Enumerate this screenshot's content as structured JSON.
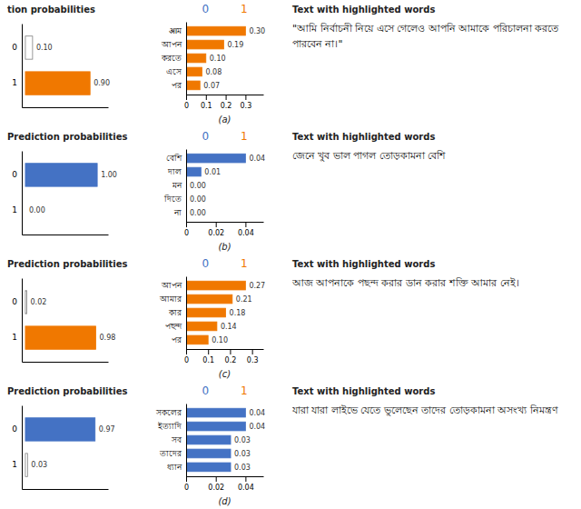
{
  "chart_data": [
    {
      "type": "bar",
      "orientation": "horizontal",
      "title": "tion probabilities",
      "categories": [
        "0",
        "1"
      ],
      "values": [
        0.1,
        0.9
      ],
      "value_labels": [
        "0.10",
        "0.90"
      ],
      "colors": [
        "white",
        "#f07800"
      ],
      "xlim": [
        -0.05,
        1.15
      ],
      "tick_labels": "y",
      "data_labels": true
    },
    {
      "type": "bar",
      "orientation": "horizontal",
      "xlabel": "(a)",
      "categories": [
        "आম",
        "আপন",
        "করতে",
        "এসে",
        "পর"
      ],
      "values": [
        0.3,
        0.19,
        0.1,
        0.08,
        0.07
      ],
      "value_labels": [
        "0.30",
        "0.19",
        "0.10",
        "0.08",
        "0.07"
      ],
      "color": "#f07800",
      "xlim": [
        0,
        0.39
      ],
      "xticks": [
        0,
        0.1,
        0.2,
        0.3
      ],
      "data_labels": true,
      "annotations": [
        {
          "text": "0",
          "color": "#4472c4"
        },
        {
          "text": "1",
          "color": "#f07800"
        }
      ]
    },
    {
      "type": "text",
      "title": "Text with highlighted words",
      "annotations": [
        {
          "text": "\"আমি নির্বাচনী নিয়ে এসে গেলেও আপনি আমাকে পরিচালনা করতে পারবেন না।\""
        }
      ]
    },
    {
      "type": "bar",
      "orientation": "horizontal",
      "title": "Prediction probabilities",
      "categories": [
        "0",
        "1"
      ],
      "values": [
        1,
        0
      ],
      "value_labels": [
        "1.00",
        "0.00"
      ],
      "colors": [
        "#4472c4",
        "white"
      ],
      "xlim": [
        -0.05,
        1.15
      ],
      "tick_labels": "y",
      "data_labels": true
    },
    {
      "type": "bar",
      "orientation": "horizontal",
      "xlabel": "(b)",
      "categories": [
        "বেশি",
        "দাল",
        "মন",
        "দিতে",
        "না"
      ],
      "values": [
        0.04,
        0.01,
        0,
        0,
        0
      ],
      "value_labels": [
        "0.04",
        "0.01",
        "0.00",
        "0.00",
        "0.00"
      ],
      "color": "#4472c4",
      "xlim": [
        0,
        0.052
      ],
      "xticks": [
        0,
        0.02,
        0.04
      ],
      "data_labels": true,
      "annotations": [
        {
          "text": "0",
          "color": "#4472c4"
        },
        {
          "text": "1",
          "color": "#f07800"
        }
      ]
    },
    {
      "type": "text",
      "title": "Text with highlighted words",
      "annotations": [
        {
          "text": "জেনে খুব ভাল পাগল তোড়কামনা বেশি"
        }
      ]
    },
    {
      "type": "bar",
      "orientation": "horizontal",
      "title": "Prediction probabilities",
      "categories": [
        "0",
        "1"
      ],
      "values": [
        0.02,
        0.98
      ],
      "value_labels": [
        "0.02",
        "0.98"
      ],
      "colors": [
        "white",
        "#f07800"
      ],
      "xlim": [
        -0.05,
        1.15
      ],
      "tick_labels": "y",
      "data_labels": true
    },
    {
      "type": "bar",
      "orientation": "horizontal",
      "xlabel": "(c)",
      "categories": [
        "আপন",
        "আমার",
        "কার",
        "পছন্দ",
        "পর"
      ],
      "values": [
        0.27,
        0.21,
        0.18,
        0.14,
        0.1
      ],
      "value_labels": [
        "0.27",
        "0.21",
        "0.18",
        "0.14",
        "0.10"
      ],
      "color": "#f07800",
      "xlim": [
        0,
        0.351
      ],
      "xticks": [
        0,
        0.1,
        0.2,
        0.3
      ],
      "data_labels": true,
      "annotations": [
        {
          "text": "0",
          "color": "#4472c4"
        },
        {
          "text": "1",
          "color": "#f07800"
        }
      ]
    },
    {
      "type": "text",
      "title": "Text with highlighted words",
      "annotations": [
        {
          "text": "আজ আপনাকে পছন্দ করার ডান করার শক্তি আমার নেই।"
        }
      ]
    },
    {
      "type": "bar",
      "orientation": "horizontal",
      "title": "Prediction probabilities",
      "categories": [
        "0",
        "1"
      ],
      "values": [
        0.97,
        0.03
      ],
      "value_labels": [
        "0.97",
        "0.03"
      ],
      "colors": [
        "#4472c4",
        "white"
      ],
      "xlim": [
        -0.05,
        1.15
      ],
      "tick_labels": "y",
      "data_labels": true
    },
    {
      "type": "bar",
      "orientation": "horizontal",
      "xlabel": "(d)",
      "categories": [
        "সকলের",
        "ইত্যাদি",
        "সব",
        "তাদের",
        "ধ্যান"
      ],
      "values": [
        0.04,
        0.04,
        0.03,
        0.03,
        0.03
      ],
      "value_labels": [
        "0.04",
        "0.04",
        "0.03",
        "0.03",
        "0.03"
      ],
      "color": "#4472c4",
      "xlim": [
        0,
        0.052
      ],
      "xticks": [
        0,
        0.02,
        0.04
      ],
      "data_labels": true,
      "annotations": [
        {
          "text": "0",
          "color": "#4472c4"
        },
        {
          "text": "1",
          "color": "#f07800"
        }
      ]
    },
    {
      "type": "text",
      "title": "Text with highlighted words",
      "annotations": [
        {
          "text": "যারা যারা লাইভে যেতে ভুলেছেন তাদের তোড়কামনা অসংখ্য নিমন্ত্রণ"
        }
      ]
    }
  ]
}
